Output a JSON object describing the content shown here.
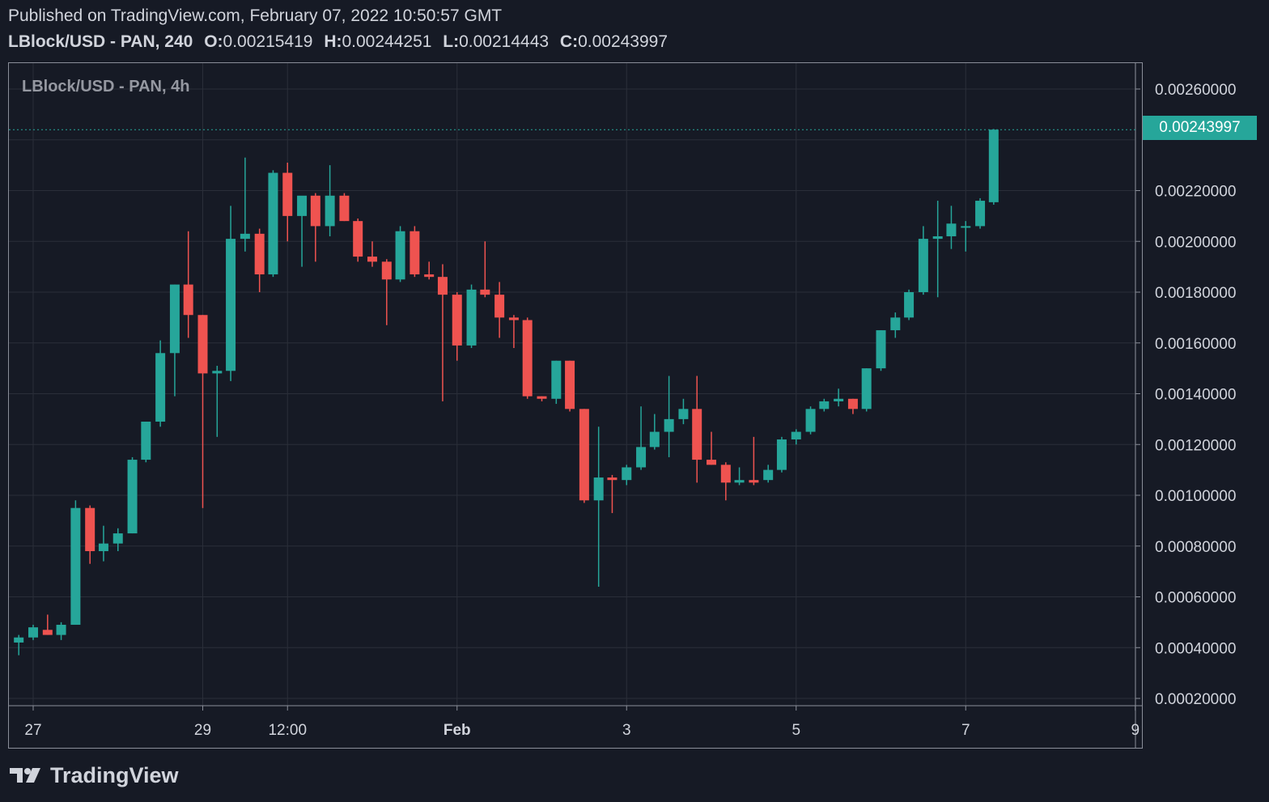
{
  "header": {
    "published": "Published on TradingView.com, February 07, 2022 10:50:57 GMT",
    "symbol_line": "LBlock/USD - PAN, 240",
    "o_label": "O:",
    "o_value": "0.00215419",
    "h_label": "H:",
    "h_value": "0.00244251",
    "l_label": "L:",
    "l_value": "0.00214443",
    "c_label": "C:",
    "c_value": "0.00243997"
  },
  "legend": "LBlock/USD - PAN, 4h",
  "last_price": "0.00243997",
  "brand": {
    "name": "TradingView",
    "logo_icon": "tradingview-logo-icon"
  },
  "colors": {
    "up": "#26a69a",
    "down": "#ef5350",
    "grid": "#2a2e39",
    "background": "#161a25"
  },
  "chart_data": {
    "type": "candlestick",
    "title": "LBlock/USD - PAN, 4h",
    "y_tick_labels": [
      "0.00260000",
      "0.00220000",
      "0.00200000",
      "0.00180000",
      "0.00160000",
      "0.00140000",
      "0.00120000",
      "0.00100000",
      "0.00080000",
      "0.00060000",
      "0.00040000",
      "0.00020000"
    ],
    "x_tick_labels": [
      "27",
      "29",
      "12:00",
      "Feb",
      "3",
      "5",
      "7",
      "9"
    ],
    "x_tick_positions_days": [
      27,
      29,
      30,
      32,
      34,
      36,
      38,
      40
    ],
    "ylim": [
      0.0002,
      0.0026
    ],
    "grid": true,
    "last_price_line": 0.00243997,
    "candles": [
      {
        "t": 26.83,
        "o": 0.00042,
        "h": 0.00045,
        "l": 0.00037,
        "c": 0.00044
      },
      {
        "t": 27.0,
        "o": 0.00044,
        "h": 0.00049,
        "l": 0.00043,
        "c": 0.00048
      },
      {
        "t": 27.17,
        "o": 0.00047,
        "h": 0.00053,
        "l": 0.00045,
        "c": 0.00045
      },
      {
        "t": 27.33,
        "o": 0.00045,
        "h": 0.0005,
        "l": 0.00043,
        "c": 0.00049
      },
      {
        "t": 27.5,
        "o": 0.00049,
        "h": 0.00098,
        "l": 0.00049,
        "c": 0.00095
      },
      {
        "t": 27.67,
        "o": 0.00095,
        "h": 0.00096,
        "l": 0.00073,
        "c": 0.00078
      },
      {
        "t": 27.83,
        "o": 0.00078,
        "h": 0.00088,
        "l": 0.00074,
        "c": 0.00081
      },
      {
        "t": 28.0,
        "o": 0.00081,
        "h": 0.00087,
        "l": 0.00078,
        "c": 0.00085
      },
      {
        "t": 28.17,
        "o": 0.00085,
        "h": 0.00115,
        "l": 0.00085,
        "c": 0.00114
      },
      {
        "t": 28.33,
        "o": 0.00114,
        "h": 0.00129,
        "l": 0.00113,
        "c": 0.00129
      },
      {
        "t": 28.5,
        "o": 0.00129,
        "h": 0.00161,
        "l": 0.00127,
        "c": 0.00156
      },
      {
        "t": 28.67,
        "o": 0.00156,
        "h": 0.00183,
        "l": 0.00139,
        "c": 0.00183
      },
      {
        "t": 28.83,
        "o": 0.00183,
        "h": 0.00204,
        "l": 0.00162,
        "c": 0.00171
      },
      {
        "t": 29.0,
        "o": 0.00171,
        "h": 0.00171,
        "l": 0.00095,
        "c": 0.00148
      },
      {
        "t": 29.17,
        "o": 0.00148,
        "h": 0.00151,
        "l": 0.00123,
        "c": 0.00149
      },
      {
        "t": 29.33,
        "o": 0.00149,
        "h": 0.00214,
        "l": 0.00145,
        "c": 0.00201
      },
      {
        "t": 29.5,
        "o": 0.00201,
        "h": 0.00233,
        "l": 0.00196,
        "c": 0.00203
      },
      {
        "t": 29.67,
        "o": 0.00203,
        "h": 0.00205,
        "l": 0.0018,
        "c": 0.00187
      },
      {
        "t": 29.83,
        "o": 0.00187,
        "h": 0.00228,
        "l": 0.00186,
        "c": 0.00227
      },
      {
        "t": 30.0,
        "o": 0.00227,
        "h": 0.00231,
        "l": 0.002,
        "c": 0.0021
      },
      {
        "t": 30.17,
        "o": 0.0021,
        "h": 0.00217,
        "l": 0.0019,
        "c": 0.00218
      },
      {
        "t": 30.33,
        "o": 0.00218,
        "h": 0.00219,
        "l": 0.00192,
        "c": 0.00206
      },
      {
        "t": 30.5,
        "o": 0.00206,
        "h": 0.0023,
        "l": 0.00202,
        "c": 0.00218
      },
      {
        "t": 30.67,
        "o": 0.00218,
        "h": 0.00219,
        "l": 0.00208,
        "c": 0.00208
      },
      {
        "t": 30.83,
        "o": 0.00208,
        "h": 0.00209,
        "l": 0.00192,
        "c": 0.00194
      },
      {
        "t": 31.0,
        "o": 0.00194,
        "h": 0.002,
        "l": 0.0019,
        "c": 0.00192
      },
      {
        "t": 31.17,
        "o": 0.00192,
        "h": 0.00193,
        "l": 0.00167,
        "c": 0.00185
      },
      {
        "t": 31.33,
        "o": 0.00185,
        "h": 0.00206,
        "l": 0.00184,
        "c": 0.00204
      },
      {
        "t": 31.5,
        "o": 0.00204,
        "h": 0.00206,
        "l": 0.00186,
        "c": 0.00187
      },
      {
        "t": 31.67,
        "o": 0.00187,
        "h": 0.00192,
        "l": 0.00185,
        "c": 0.00186
      },
      {
        "t": 31.83,
        "o": 0.00186,
        "h": 0.00191,
        "l": 0.00137,
        "c": 0.00179
      },
      {
        "t": 32.0,
        "o": 0.00179,
        "h": 0.0018,
        "l": 0.00153,
        "c": 0.00159
      },
      {
        "t": 32.17,
        "o": 0.00159,
        "h": 0.00183,
        "l": 0.00158,
        "c": 0.00181
      },
      {
        "t": 32.33,
        "o": 0.00181,
        "h": 0.002,
        "l": 0.00178,
        "c": 0.00179
      },
      {
        "t": 32.5,
        "o": 0.00179,
        "h": 0.00184,
        "l": 0.00162,
        "c": 0.0017
      },
      {
        "t": 32.67,
        "o": 0.0017,
        "h": 0.00171,
        "l": 0.00158,
        "c": 0.00169
      },
      {
        "t": 32.83,
        "o": 0.00169,
        "h": 0.0017,
        "l": 0.00138,
        "c": 0.00139
      },
      {
        "t": 33.0,
        "o": 0.00139,
        "h": 0.00139,
        "l": 0.00137,
        "c": 0.00138
      },
      {
        "t": 33.17,
        "o": 0.00138,
        "h": 0.00153,
        "l": 0.00136,
        "c": 0.00153
      },
      {
        "t": 33.33,
        "o": 0.00153,
        "h": 0.00153,
        "l": 0.00133,
        "c": 0.00134
      },
      {
        "t": 33.5,
        "o": 0.00134,
        "h": 0.00134,
        "l": 0.00097,
        "c": 0.00098
      },
      {
        "t": 33.67,
        "o": 0.00098,
        "h": 0.00127,
        "l": 0.00064,
        "c": 0.00107
      },
      {
        "t": 33.83,
        "o": 0.00107,
        "h": 0.00108,
        "l": 0.00093,
        "c": 0.00106
      },
      {
        "t": 34.0,
        "o": 0.00106,
        "h": 0.00112,
        "l": 0.00104,
        "c": 0.00111
      },
      {
        "t": 34.17,
        "o": 0.00111,
        "h": 0.00135,
        "l": 0.0011,
        "c": 0.00119
      },
      {
        "t": 34.33,
        "o": 0.00119,
        "h": 0.00132,
        "l": 0.00118,
        "c": 0.00125
      },
      {
        "t": 34.5,
        "o": 0.00125,
        "h": 0.00147,
        "l": 0.00115,
        "c": 0.0013
      },
      {
        "t": 34.67,
        "o": 0.0013,
        "h": 0.00138,
        "l": 0.00128,
        "c": 0.00134
      },
      {
        "t": 34.83,
        "o": 0.00134,
        "h": 0.00147,
        "l": 0.00105,
        "c": 0.00114
      },
      {
        "t": 35.0,
        "o": 0.00114,
        "h": 0.00125,
        "l": 0.00112,
        "c": 0.00112
      },
      {
        "t": 35.17,
        "o": 0.00112,
        "h": 0.00113,
        "l": 0.00098,
        "c": 0.00105
      },
      {
        "t": 35.33,
        "o": 0.00105,
        "h": 0.00111,
        "l": 0.00104,
        "c": 0.00106
      },
      {
        "t": 35.5,
        "o": 0.00106,
        "h": 0.00123,
        "l": 0.00104,
        "c": 0.00105
      },
      {
        "t": 35.67,
        "o": 0.00106,
        "h": 0.00112,
        "l": 0.00105,
        "c": 0.0011
      },
      {
        "t": 35.83,
        "o": 0.0011,
        "h": 0.00123,
        "l": 0.00109,
        "c": 0.00122
      },
      {
        "t": 36.0,
        "o": 0.00122,
        "h": 0.00126,
        "l": 0.0012,
        "c": 0.00125
      },
      {
        "t": 36.17,
        "o": 0.00125,
        "h": 0.00135,
        "l": 0.00124,
        "c": 0.00134
      },
      {
        "t": 36.33,
        "o": 0.00134,
        "h": 0.00138,
        "l": 0.00133,
        "c": 0.00137
      },
      {
        "t": 36.5,
        "o": 0.00137,
        "h": 0.00142,
        "l": 0.00135,
        "c": 0.00138
      },
      {
        "t": 36.67,
        "o": 0.00138,
        "h": 0.00138,
        "l": 0.00132,
        "c": 0.00134
      },
      {
        "t": 36.83,
        "o": 0.00134,
        "h": 0.0015,
        "l": 0.00133,
        "c": 0.0015
      },
      {
        "t": 37.0,
        "o": 0.0015,
        "h": 0.00165,
        "l": 0.00149,
        "c": 0.00165
      },
      {
        "t": 37.17,
        "o": 0.00165,
        "h": 0.00172,
        "l": 0.00162,
        "c": 0.0017
      },
      {
        "t": 37.33,
        "o": 0.0017,
        "h": 0.00181,
        "l": 0.00169,
        "c": 0.0018
      },
      {
        "t": 37.5,
        "o": 0.0018,
        "h": 0.00206,
        "l": 0.00179,
        "c": 0.00201
      },
      {
        "t": 37.67,
        "o": 0.00201,
        "h": 0.00216,
        "l": 0.00178,
        "c": 0.00202
      },
      {
        "t": 37.83,
        "o": 0.00202,
        "h": 0.00214,
        "l": 0.00197,
        "c": 0.00207
      },
      {
        "t": 38.0,
        "o": 0.00206,
        "h": 0.00208,
        "l": 0.00196,
        "c": 0.00206
      },
      {
        "t": 38.17,
        "o": 0.00206,
        "h": 0.00217,
        "l": 0.00205,
        "c": 0.00216
      },
      {
        "t": 38.33,
        "o": 0.00215419,
        "h": 0.00244251,
        "l": 0.00214443,
        "c": 0.00243997
      }
    ]
  }
}
